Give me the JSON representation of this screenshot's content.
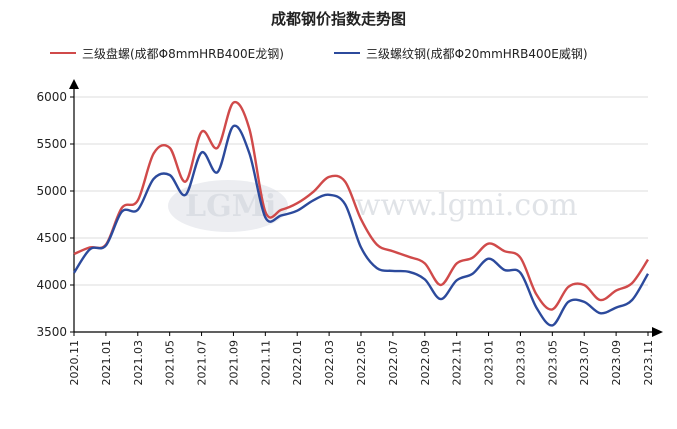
{
  "chart_data": {
    "type": "line",
    "title": "成都钢价指数走势图",
    "xlabel": "",
    "ylabel": "",
    "x_tick_labels": [
      "2020.11",
      "2021.01",
      "2021.03",
      "2021.05",
      "2021.07",
      "2021.09",
      "2021.11",
      "2022.01",
      "2022.03",
      "2022.05",
      "2022.07",
      "2022.09",
      "2022.11",
      "2023.01",
      "2023.03",
      "2023.05",
      "2023.07",
      "2023.09",
      "2023.11"
    ],
    "y_ticks": [
      3500,
      4000,
      4500,
      5000,
      5500,
      6000
    ],
    "ylim": [
      3500,
      6000
    ],
    "xlim": [
      0,
      36
    ],
    "grid": true,
    "legend_position": "top",
    "series": [
      {
        "name": "三级盘螺(成都Φ8mmHRB400E龙钢)",
        "color": "#d04a4a",
        "x": [
          0,
          1,
          2,
          3,
          4,
          5,
          6,
          7,
          8,
          9,
          10,
          11,
          12,
          13,
          14,
          15,
          16,
          17,
          18,
          19,
          20,
          21,
          22,
          23,
          24,
          25,
          26,
          27,
          28,
          29,
          30,
          31,
          32,
          33,
          34,
          35,
          36
        ],
        "values": [
          4330,
          4400,
          4430,
          4820,
          4900,
          5400,
          5460,
          5100,
          5630,
          5460,
          5940,
          5660,
          4780,
          4800,
          4870,
          4990,
          5150,
          5100,
          4700,
          4430,
          4360,
          4300,
          4230,
          4000,
          4230,
          4290,
          4440,
          4360,
          4290,
          3900,
          3740,
          3980,
          4000,
          3840,
          3940,
          4020,
          4270
        ]
      },
      {
        "name": "三级螺纹钢(成都Φ20mmHRB400E威钢)",
        "color": "#2c4a9c",
        "x": [
          0,
          1,
          2,
          3,
          4,
          5,
          6,
          7,
          8,
          9,
          10,
          11,
          12,
          13,
          14,
          15,
          16,
          17,
          18,
          19,
          20,
          21,
          22,
          23,
          24,
          25,
          26,
          27,
          28,
          29,
          30,
          31,
          32,
          33,
          34,
          35,
          36
        ],
        "values": [
          4130,
          4380,
          4420,
          4780,
          4800,
          5130,
          5170,
          4960,
          5410,
          5200,
          5690,
          5400,
          4720,
          4740,
          4790,
          4900,
          4960,
          4860,
          4400,
          4180,
          4150,
          4140,
          4060,
          3850,
          4050,
          4120,
          4280,
          4160,
          4130,
          3760,
          3570,
          3820,
          3820,
          3700,
          3760,
          3840,
          4120
        ]
      }
    ]
  }
}
